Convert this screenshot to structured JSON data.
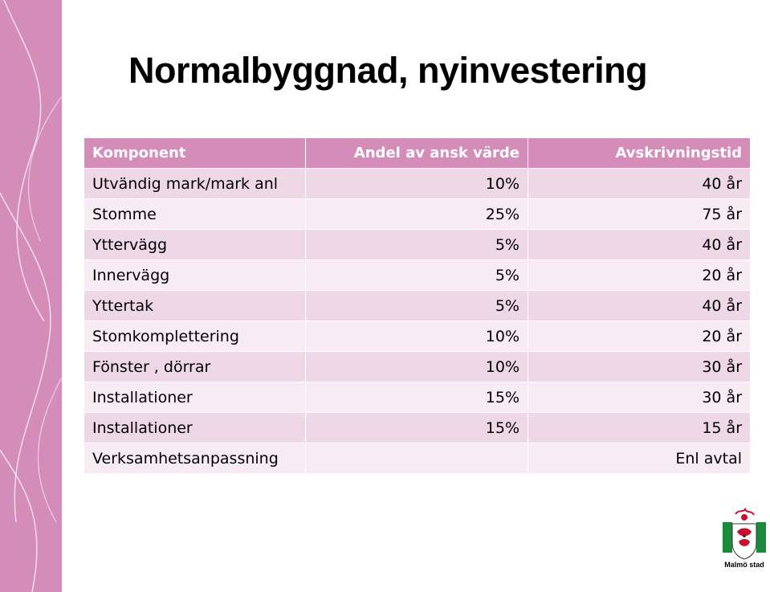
{
  "slide": {
    "title": "Normalbyggnad, nyinvestering"
  },
  "table": {
    "headers": [
      "Komponent",
      "Andel av ansk värde",
      "Avskrivningstid"
    ],
    "rows": [
      [
        "Utvändig mark/mark anl",
        "10%",
        "40 år"
      ],
      [
        "Stomme",
        "25%",
        "75 år"
      ],
      [
        "Yttervägg",
        "5%",
        "40 år"
      ],
      [
        "Innervägg",
        "5%",
        "20 år"
      ],
      [
        "Yttertak",
        "5%",
        "40 år"
      ],
      [
        "Stomkomplettering",
        "10%",
        "20 år"
      ],
      [
        "Fönster , dörrar",
        "10%",
        "30 år"
      ],
      [
        "Installationer",
        "15%",
        "30 år"
      ],
      [
        "Installationer",
        "15%",
        "15 år"
      ],
      [
        "Verksamhetsanpassning",
        "",
        "Enl avtal"
      ]
    ]
  },
  "logo": {
    "text": "Malmö stad",
    "icon": "coat-of-arms-icon"
  },
  "colors": {
    "accent": "#d48db9",
    "row_odd": "#efd8e6",
    "row_even": "#f7ecf3"
  }
}
